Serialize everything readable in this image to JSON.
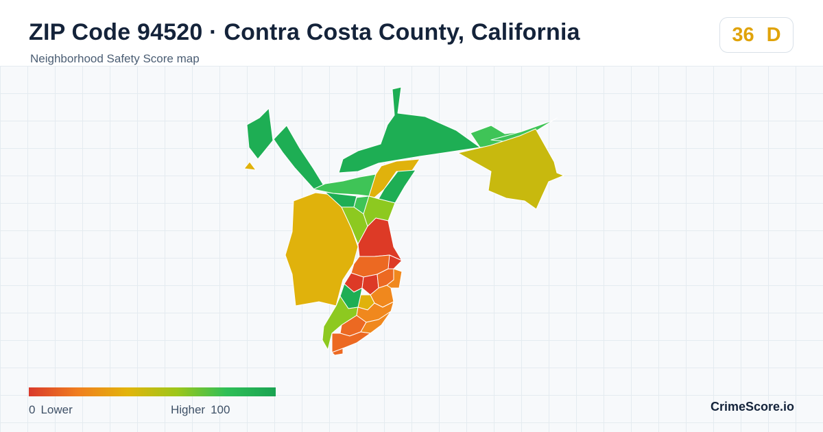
{
  "header": {
    "title": "ZIP Code 94520 · Contra Costa County, California",
    "subtitle": "Neighborhood Safety Score map"
  },
  "score": {
    "value": "36",
    "grade": "D",
    "color": "#e0a30a"
  },
  "legend": {
    "min_value": "0",
    "min_label": "Lower",
    "max_label": "Higher",
    "max_value": "100",
    "gradient_colors": [
      "#d93a2b",
      "#f07f1f",
      "#e2b40b",
      "#9dc61a",
      "#2fbf57",
      "#1aa352"
    ]
  },
  "brand": "CrimeScore.io",
  "map": {
    "palette": {
      "dark_green": "#1eae54",
      "green": "#3fc457",
      "yellow_green": "#8dc920",
      "olive": "#c8b90e",
      "gold": "#e0b20c",
      "orange": "#f0881d",
      "orange_red": "#ec6922",
      "red": "#dd3a26"
    }
  }
}
